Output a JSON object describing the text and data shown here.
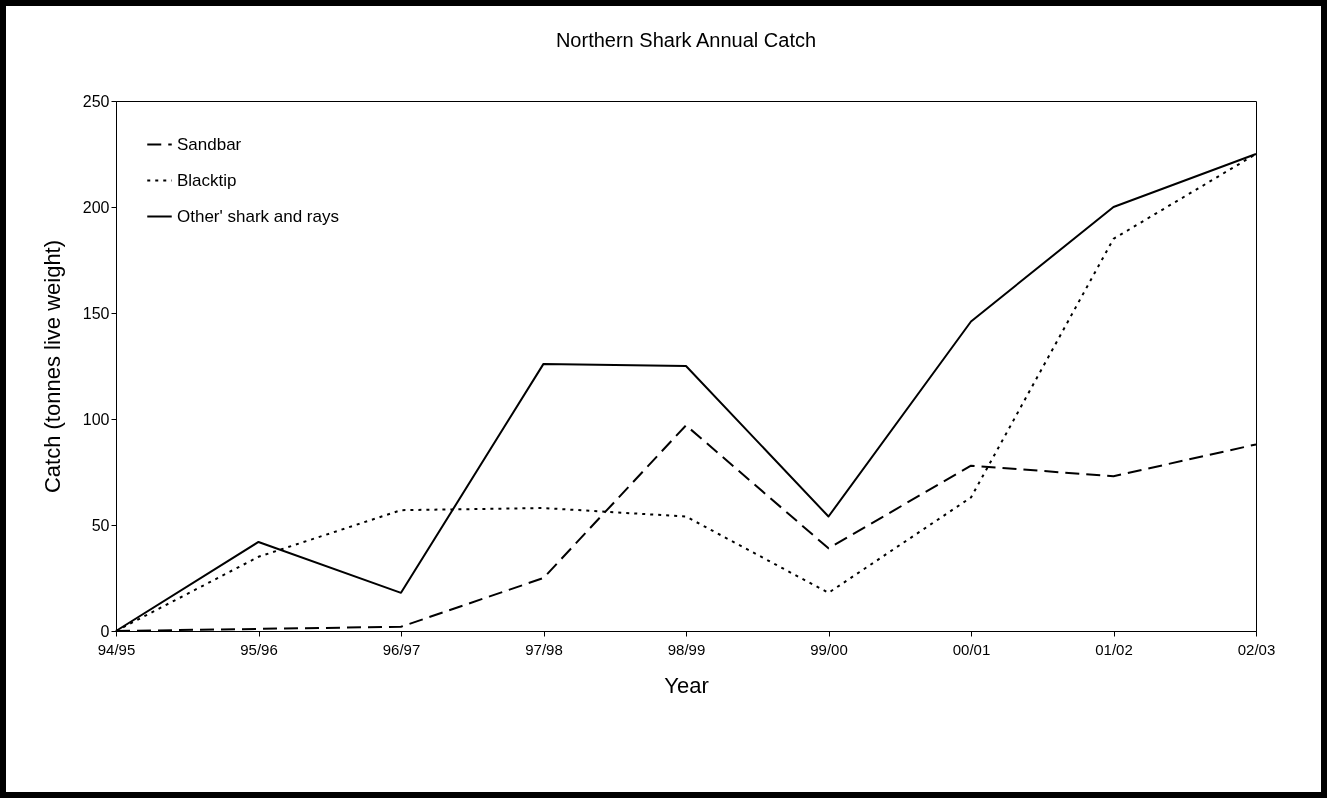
{
  "chart_data": {
    "type": "line",
    "title": "Northern Shark Annual Catch",
    "xlabel": "Year",
    "ylabel": "Catch (tonnes live weight)",
    "categories": [
      "94/95",
      "95/96",
      "96/97",
      "97/98",
      "98/99",
      "99/00",
      "00/01",
      "01/02",
      "02/03"
    ],
    "series": [
      {
        "name": "Sandbar",
        "color": "#000000",
        "line_style": "dashed",
        "values": [
          0,
          1,
          2,
          25,
          97,
          39,
          78,
          73,
          88
        ]
      },
      {
        "name": "Blacktip",
        "color": "#000000",
        "line_style": "dotted",
        "values": [
          0,
          35,
          57,
          58,
          54,
          18,
          63,
          185,
          225
        ]
      },
      {
        "name": "Other' shark and rays",
        "color": "#000000",
        "line_style": "solid",
        "values": [
          0,
          42,
          18,
          126,
          125,
          54,
          146,
          200,
          225
        ]
      }
    ],
    "ylim": [
      0,
      250
    ],
    "yticks": [
      0,
      50,
      100,
      150,
      200,
      250
    ],
    "grid": false,
    "legend": "top left",
    "marker": "none"
  }
}
